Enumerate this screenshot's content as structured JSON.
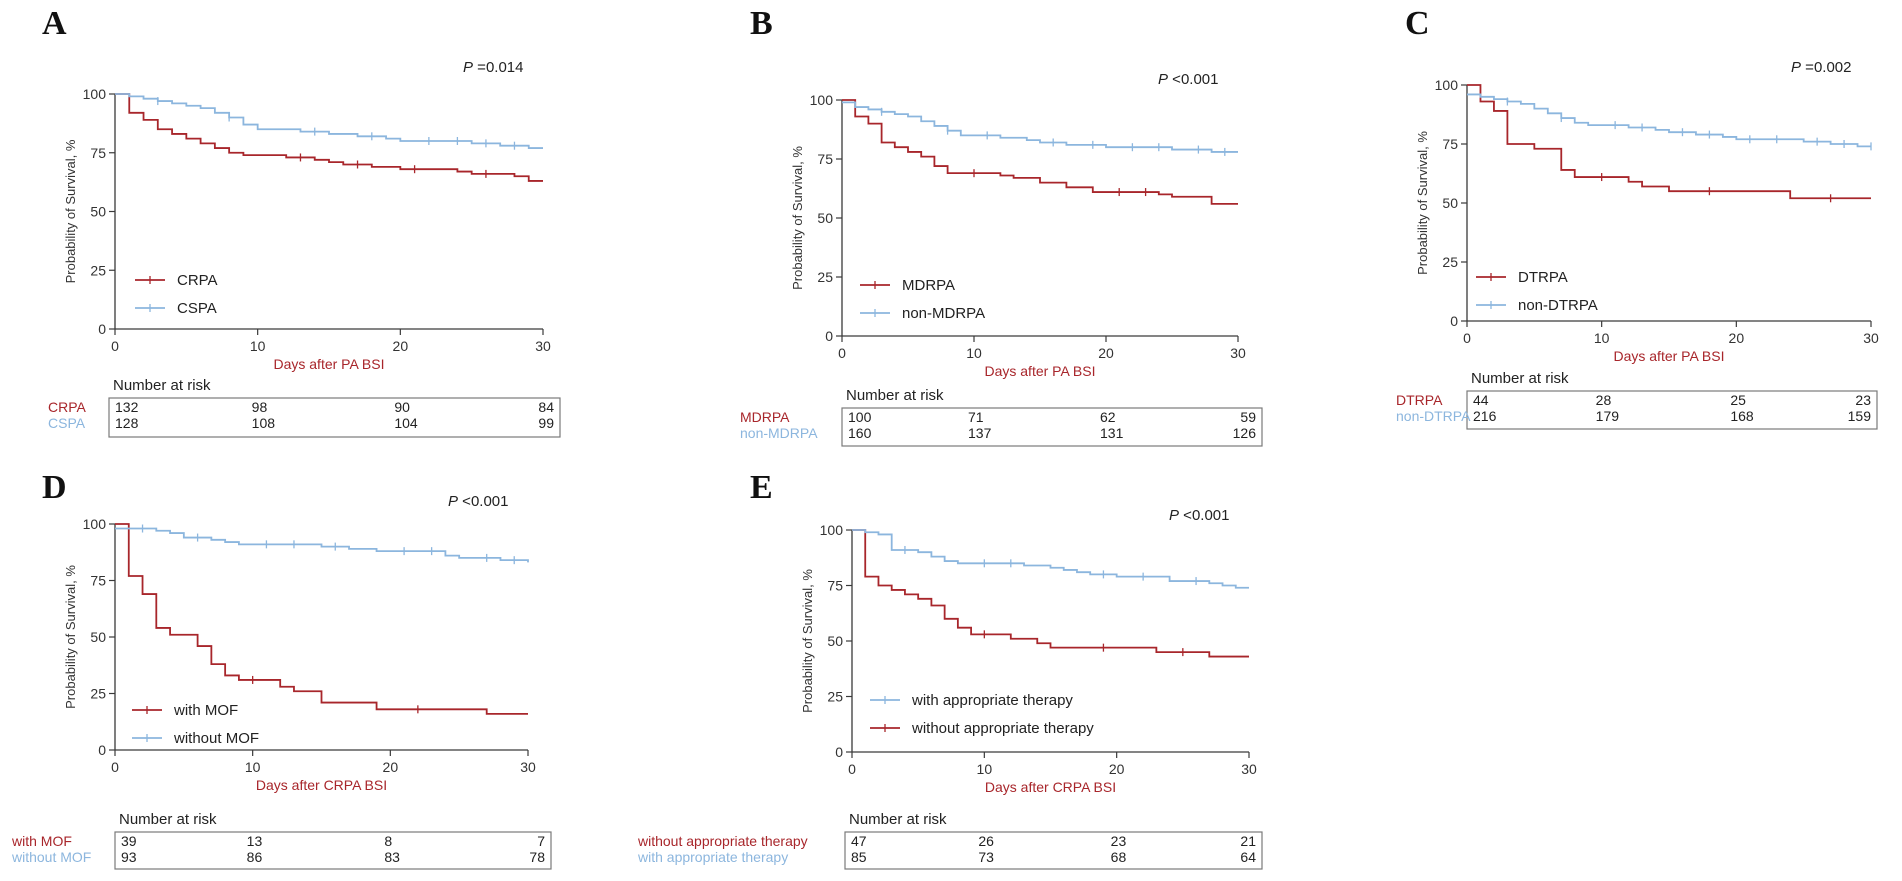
{
  "colors": {
    "red": "#a8262b",
    "blue": "#8cb6de",
    "axis": "#3a3a3a",
    "table_border": "#7a7a7a"
  },
  "chart_data": [
    {
      "panel_label": "A",
      "type": "line",
      "title": "",
      "p_value_prefix": "P",
      "p_value_text": " =0.014",
      "ylabel": "Probability of Survival, %",
      "xlabel": "Days after PA BSI",
      "xlim": [
        0,
        30
      ],
      "ylim": [
        0,
        100
      ],
      "xticks": [
        0,
        10,
        20,
        30
      ],
      "yticks": [
        0,
        25,
        50,
        75,
        100
      ],
      "legend_placement": "bottom-left",
      "legend": [
        {
          "name": "CRPA",
          "color": "red"
        },
        {
          "name": "CSPA",
          "color": "blue"
        }
      ],
      "series": [
        {
          "name": "CRPA",
          "color": "red",
          "steps": [
            [
              0,
              100
            ],
            [
              1,
              92
            ],
            [
              2,
              89
            ],
            [
              3,
              85
            ],
            [
              4,
              83
            ],
            [
              5,
              81
            ],
            [
              6,
              79
            ],
            [
              7,
              77
            ],
            [
              8,
              75
            ],
            [
              9,
              74
            ],
            [
              12,
              73
            ],
            [
              14,
              72
            ],
            [
              15,
              71
            ],
            [
              16,
              70
            ],
            [
              18,
              69
            ],
            [
              20,
              68
            ],
            [
              24,
              67
            ],
            [
              25,
              66
            ],
            [
              28,
              65
            ],
            [
              29,
              63
            ],
            [
              30,
              63
            ]
          ],
          "censors": [
            13,
            17,
            21,
            26
          ]
        },
        {
          "name": "CSPA",
          "color": "blue",
          "steps": [
            [
              0,
              100
            ],
            [
              1,
              99
            ],
            [
              2,
              98
            ],
            [
              3,
              97
            ],
            [
              4,
              96
            ],
            [
              5,
              95
            ],
            [
              6,
              94
            ],
            [
              7,
              92
            ],
            [
              8,
              90
            ],
            [
              9,
              87
            ],
            [
              10,
              85
            ],
            [
              13,
              84
            ],
            [
              15,
              83
            ],
            [
              17,
              82
            ],
            [
              19,
              81
            ],
            [
              20,
              80
            ],
            [
              25,
              79
            ],
            [
              27,
              78
            ],
            [
              29,
              77
            ],
            [
              30,
              77
            ]
          ],
          "censors": [
            3,
            8,
            14,
            18,
            22,
            24,
            26,
            28
          ]
        }
      ],
      "risk_table": {
        "title": "Number at risk",
        "rows": [
          {
            "label": "CRPA",
            "color": "red",
            "values": [
              132,
              98,
              90,
              84
            ]
          },
          {
            "label": "CSPA",
            "color": "blue",
            "values": [
              128,
              108,
              104,
              99
            ]
          }
        ]
      }
    },
    {
      "panel_label": "B",
      "type": "line",
      "title": "",
      "p_value_prefix": "P",
      "p_value_text": " <0.001",
      "ylabel": "Probability of Survival, %",
      "xlabel": "Days after PA BSI",
      "xlim": [
        0,
        30
      ],
      "ylim": [
        0,
        100
      ],
      "xticks": [
        0,
        10,
        20,
        30
      ],
      "yticks": [
        0,
        25,
        50,
        75,
        100
      ],
      "legend_placement": "bottom-left",
      "legend": [
        {
          "name": "MDRPA",
          "color": "red"
        },
        {
          "name": "non-MDRPA",
          "color": "blue"
        }
      ],
      "series": [
        {
          "name": "MDRPA",
          "color": "red",
          "steps": [
            [
              0,
              100
            ],
            [
              1,
              93
            ],
            [
              2,
              90
            ],
            [
              3,
              82
            ],
            [
              4,
              80
            ],
            [
              5,
              78
            ],
            [
              6,
              76
            ],
            [
              7,
              72
            ],
            [
              8,
              69
            ],
            [
              12,
              68
            ],
            [
              13,
              67
            ],
            [
              15,
              65
            ],
            [
              17,
              63
            ],
            [
              19,
              61
            ],
            [
              24,
              60
            ],
            [
              25,
              59
            ],
            [
              28,
              56
            ],
            [
              30,
              56
            ]
          ],
          "censors": [
            10,
            21,
            23
          ]
        },
        {
          "name": "non-MDRPA",
          "color": "blue",
          "steps": [
            [
              0,
              99
            ],
            [
              1,
              97
            ],
            [
              2,
              96
            ],
            [
              3,
              95
            ],
            [
              4,
              94
            ],
            [
              5,
              93
            ],
            [
              6,
              91
            ],
            [
              7,
              89
            ],
            [
              8,
              87
            ],
            [
              9,
              85
            ],
            [
              12,
              84
            ],
            [
              14,
              83
            ],
            [
              15,
              82
            ],
            [
              17,
              81
            ],
            [
              20,
              80
            ],
            [
              25,
              79
            ],
            [
              28,
              78
            ],
            [
              30,
              78
            ]
          ],
          "censors": [
            3,
            8,
            11,
            16,
            19,
            22,
            24,
            27,
            29
          ]
        }
      ],
      "risk_table": {
        "title": "Number at risk",
        "rows": [
          {
            "label": "MDRPA",
            "color": "red",
            "values": [
              100,
              71,
              62,
              59
            ]
          },
          {
            "label": "non-MDRPA",
            "color": "blue",
            "values": [
              160,
              137,
              131,
              126
            ]
          }
        ]
      }
    },
    {
      "panel_label": "C",
      "type": "line",
      "title": "",
      "p_value_prefix": "P",
      "p_value_text": " =0.002",
      "ylabel": "Probability of Survival, %",
      "xlabel": "Days after PA BSI",
      "xlim": [
        0,
        30
      ],
      "ylim": [
        0,
        100
      ],
      "xticks": [
        0,
        10,
        20,
        30
      ],
      "yticks": [
        0,
        25,
        50,
        75,
        100
      ],
      "legend_placement": "bottom-left",
      "legend": [
        {
          "name": "DTRPA",
          "color": "red"
        },
        {
          "name": "non-DTRPA",
          "color": "blue"
        }
      ],
      "series": [
        {
          "name": "DTRPA",
          "color": "red",
          "steps": [
            [
              0,
              100
            ],
            [
              1,
              93
            ],
            [
              2,
              89
            ],
            [
              3,
              75
            ],
            [
              5,
              73
            ],
            [
              7,
              64
            ],
            [
              8,
              61
            ],
            [
              12,
              59
            ],
            [
              13,
              57
            ],
            [
              15,
              55
            ],
            [
              24,
              52
            ],
            [
              30,
              52
            ]
          ],
          "censors": [
            10,
            18,
            27
          ]
        },
        {
          "name": "non-DTRPA",
          "color": "blue",
          "steps": [
            [
              0,
              96
            ],
            [
              1,
              95
            ],
            [
              2,
              94
            ],
            [
              3,
              93
            ],
            [
              4,
              92
            ],
            [
              5,
              90
            ],
            [
              6,
              88
            ],
            [
              7,
              86
            ],
            [
              8,
              84
            ],
            [
              9,
              83
            ],
            [
              12,
              82
            ],
            [
              14,
              81
            ],
            [
              15,
              80
            ],
            [
              17,
              79
            ],
            [
              19,
              78
            ],
            [
              20,
              77
            ],
            [
              25,
              76
            ],
            [
              27,
              75
            ],
            [
              29,
              74
            ],
            [
              30,
              74
            ]
          ],
          "censors": [
            3,
            7,
            11,
            13,
            16,
            18,
            21,
            23,
            26,
            28,
            30
          ]
        }
      ],
      "risk_table": {
        "title": "Number at risk",
        "rows": [
          {
            "label": "DTRPA",
            "color": "red",
            "values": [
              44,
              28,
              25,
              23
            ]
          },
          {
            "label": "non-DTRPA",
            "color": "blue",
            "values": [
              216,
              179,
              168,
              159
            ]
          }
        ]
      }
    },
    {
      "panel_label": "D",
      "type": "line",
      "title": "",
      "p_value_prefix": "P",
      "p_value_text": " <0.001",
      "ylabel": "Probability of Survival, %",
      "xlabel": "Days after CRPA BSI",
      "xlim": [
        0,
        30
      ],
      "ylim": [
        0,
        100
      ],
      "xticks": [
        0,
        10,
        20,
        30
      ],
      "yticks": [
        0,
        25,
        50,
        75,
        100
      ],
      "legend_placement": "bottom-left",
      "legend": [
        {
          "name": "with MOF",
          "color": "red"
        },
        {
          "name": "without MOF",
          "color": "blue"
        }
      ],
      "series": [
        {
          "name": "with MOF",
          "color": "red",
          "steps": [
            [
              0,
              100
            ],
            [
              1,
              77
            ],
            [
              2,
              69
            ],
            [
              3,
              54
            ],
            [
              4,
              51
            ],
            [
              6,
              46
            ],
            [
              7,
              38
            ],
            [
              8,
              33
            ],
            [
              9,
              31
            ],
            [
              12,
              28
            ],
            [
              13,
              26
            ],
            [
              15,
              21
            ],
            [
              19,
              18
            ],
            [
              27,
              16
            ],
            [
              30,
              16
            ]
          ],
          "censors": [
            10,
            22
          ]
        },
        {
          "name": "without MOF",
          "color": "blue",
          "steps": [
            [
              0,
              98
            ],
            [
              3,
              97
            ],
            [
              4,
              96
            ],
            [
              5,
              94
            ],
            [
              7,
              93
            ],
            [
              8,
              92
            ],
            [
              9,
              91
            ],
            [
              15,
              90
            ],
            [
              17,
              89
            ],
            [
              19,
              88
            ],
            [
              24,
              86
            ],
            [
              25,
              85
            ],
            [
              28,
              84
            ],
            [
              30,
              83
            ]
          ],
          "censors": [
            2,
            6,
            11,
            13,
            16,
            21,
            23,
            27,
            29
          ]
        }
      ],
      "risk_table": {
        "title": "Number at risk",
        "rows": [
          {
            "label": "with MOF",
            "color": "red",
            "values": [
              39,
              13,
              8,
              7
            ]
          },
          {
            "label": "without MOF",
            "color": "blue",
            "values": [
              93,
              86,
              83,
              78
            ]
          }
        ]
      }
    },
    {
      "panel_label": "E",
      "type": "line",
      "title": "",
      "p_value_prefix": "P",
      "p_value_text": " <0.001",
      "ylabel": "Probability of Survival, %",
      "xlabel": "Days after CRPA BSI",
      "xlim": [
        0,
        30
      ],
      "ylim": [
        0,
        100
      ],
      "xticks": [
        0,
        10,
        20,
        30
      ],
      "yticks": [
        0,
        25,
        50,
        75,
        100
      ],
      "legend_placement": "bottom-left",
      "legend": [
        {
          "name": "with appropriate therapy",
          "color": "blue"
        },
        {
          "name": "without appropriate therapy",
          "color": "red"
        }
      ],
      "series": [
        {
          "name": "without appropriate therapy",
          "color": "red",
          "steps": [
            [
              0,
              100
            ],
            [
              1,
              79
            ],
            [
              2,
              75
            ],
            [
              3,
              73
            ],
            [
              4,
              71
            ],
            [
              5,
              69
            ],
            [
              6,
              66
            ],
            [
              7,
              60
            ],
            [
              8,
              56
            ],
            [
              9,
              53
            ],
            [
              12,
              51
            ],
            [
              14,
              49
            ],
            [
              15,
              47
            ],
            [
              23,
              45
            ],
            [
              27,
              43
            ],
            [
              30,
              43
            ]
          ],
          "censors": [
            10,
            19,
            25
          ]
        },
        {
          "name": "with appropriate therapy",
          "color": "blue",
          "steps": [
            [
              0,
              100
            ],
            [
              1,
              99
            ],
            [
              2,
              98
            ],
            [
              3,
              91
            ],
            [
              5,
              90
            ],
            [
              6,
              88
            ],
            [
              7,
              86
            ],
            [
              8,
              85
            ],
            [
              13,
              84
            ],
            [
              15,
              83
            ],
            [
              16,
              82
            ],
            [
              17,
              81
            ],
            [
              18,
              80
            ],
            [
              20,
              79
            ],
            [
              24,
              77
            ],
            [
              27,
              76
            ],
            [
              28,
              75
            ],
            [
              29,
              74
            ],
            [
              30,
              74
            ]
          ],
          "censors": [
            4,
            10,
            12,
            19,
            22,
            26
          ]
        }
      ],
      "risk_table": {
        "title": "Number at risk",
        "rows": [
          {
            "label": "without appropriate therapy",
            "color": "red",
            "values": [
              47,
              26,
              23,
              21
            ]
          },
          {
            "label": "with appropriate therapy",
            "color": "blue",
            "values": [
              85,
              73,
              68,
              64
            ]
          }
        ]
      }
    }
  ]
}
